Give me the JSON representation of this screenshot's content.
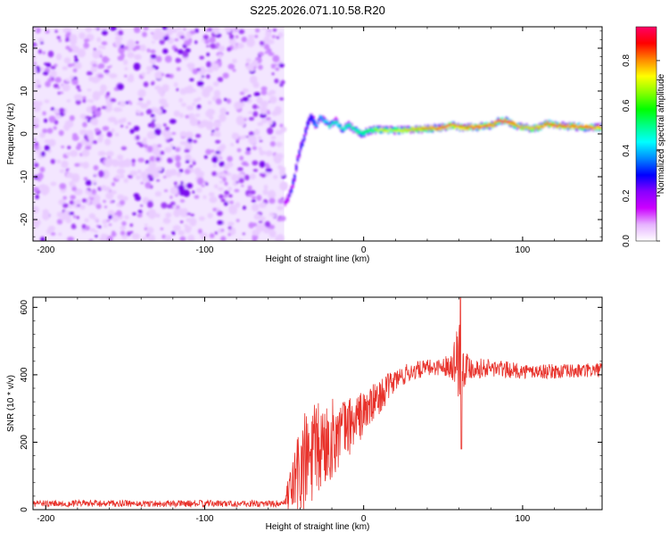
{
  "title": "S225.2026.071.10.58.R20",
  "colors": {
    "background": "#ffffff",
    "snr_line": "#e8322b",
    "speckle": "#8a2be2",
    "colormap": [
      "#ffffff",
      "#e6b3ff",
      "#cc00ff",
      "#8800ff",
      "#0000ff",
      "#0088ff",
      "#00ffff",
      "#00ff88",
      "#00ff00",
      "#88ff00",
      "#ffff00",
      "#ff8800",
      "#ff0000",
      "#ff0066"
    ]
  },
  "chart_data": [
    {
      "type": "heatmap",
      "title": "S225.2026.071.10.58.R20",
      "xlabel": "Height of straight line (km)",
      "ylabel": "Frequency (Hz)",
      "xlim": [
        -208,
        150
      ],
      "ylim": [
        -25,
        25
      ],
      "xticks": [
        -200,
        -100,
        0,
        100
      ],
      "yticks": [
        -20,
        -10,
        0,
        10,
        20
      ],
      "noise_region_x": [
        -208,
        -50
      ],
      "colorbar": {
        "label": "Normalized spectral amplitude",
        "range": [
          0,
          0.95
        ],
        "ticks": [
          0.0,
          0.2,
          0.4,
          0.6,
          0.8
        ]
      },
      "signal_track": {
        "x": [
          -50,
          -48,
          -46,
          -44,
          -42,
          -40,
          -38,
          -36,
          -34,
          -32,
          -30,
          -28,
          -25,
          -22,
          -18,
          -14,
          -10,
          -6,
          -2,
          2,
          6,
          10,
          20,
          30,
          40,
          50,
          55,
          60,
          70,
          80,
          85,
          90,
          95,
          100,
          105,
          110,
          115,
          120,
          130,
          140,
          150
        ],
        "frequency": [
          -16,
          -15,
          -13,
          -10,
          -6,
          -3,
          -1,
          2,
          4,
          3,
          2,
          4,
          3,
          2,
          3,
          1,
          2,
          1,
          0,
          0.5,
          1,
          1,
          0.8,
          1,
          1.2,
          1.5,
          2,
          1.5,
          1.5,
          2,
          3,
          3,
          2,
          1.5,
          1.2,
          1.5,
          2.5,
          2,
          1.8,
          1.5,
          1.6
        ],
        "amplitude": [
          0.15,
          0.2,
          0.3,
          0.3,
          0.25,
          0.3,
          0.3,
          0.3,
          0.3,
          0.35,
          0.4,
          0.4,
          0.45,
          0.5,
          0.5,
          0.5,
          0.55,
          0.55,
          0.55,
          0.6,
          0.65,
          0.75,
          0.7,
          0.8,
          0.85,
          0.9,
          0.85,
          0.85,
          0.9,
          0.9,
          0.95,
          0.95,
          0.85,
          0.8,
          0.8,
          0.85,
          0.9,
          0.9,
          0.88,
          0.88,
          0.85
        ]
      }
    },
    {
      "type": "line",
      "xlabel": "Height of straight line (km)",
      "ylabel": "SNR (10 * v/v)",
      "xlim": [
        -208,
        150
      ],
      "ylim": [
        0,
        630
      ],
      "xticks": [
        -200,
        -100,
        0,
        100
      ],
      "yticks": [
        0,
        200,
        400,
        600
      ],
      "series": [
        {
          "name": "SNR",
          "x": [
            -208,
            -50,
            -40,
            -30,
            -20,
            -10,
            0,
            10,
            20,
            30,
            40,
            50,
            55,
            58,
            60,
            62,
            65,
            70,
            80,
            90,
            100,
            110,
            120,
            130,
            140,
            150
          ],
          "mean": [
            18,
            18,
            120,
            170,
            210,
            245,
            285,
            335,
            385,
            410,
            420,
            425,
            430,
            450,
            455,
            440,
            425,
            420,
            420,
            415,
            410,
            410,
            410,
            410,
            412,
            415
          ],
          "spread": [
            10,
            10,
            160,
            150,
            120,
            90,
            70,
            50,
            35,
            28,
            25,
            25,
            40,
            80,
            140,
            90,
            45,
            30,
            28,
            25,
            22,
            22,
            22,
            22,
            22,
            22
          ]
        }
      ],
      "annotations": {
        "peak": {
          "x": 61,
          "y": 630
        },
        "dip": {
          "x": 61,
          "y": 180
        }
      }
    }
  ]
}
